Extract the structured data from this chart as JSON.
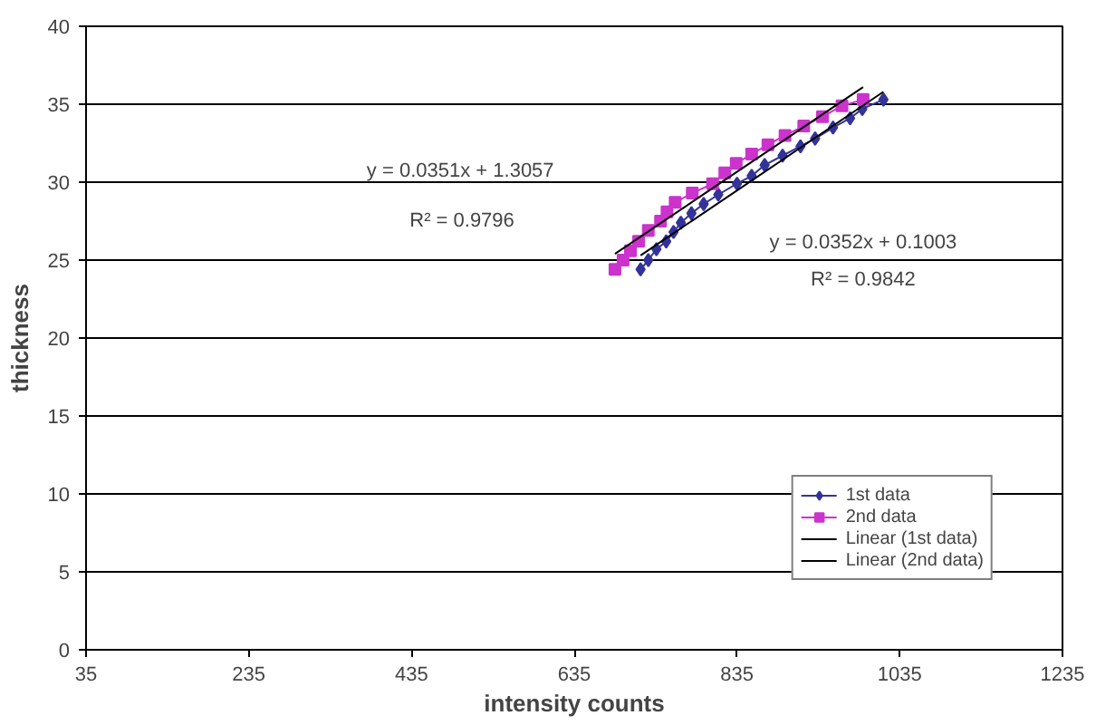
{
  "chart_data": {
    "type": "line",
    "xlabel": "intensity counts",
    "ylabel": "thickness",
    "xlim": [
      35,
      1235
    ],
    "xticks": [
      35,
      235,
      435,
      635,
      835,
      1035,
      1235
    ],
    "ylim": [
      0,
      40
    ],
    "yticks": [
      0,
      5,
      10,
      15,
      20,
      25,
      30,
      35,
      40
    ],
    "grid": "y",
    "legend": "bottom right",
    "series": [
      {
        "name": "1st data",
        "color": "#333399",
        "marker": "diamond",
        "x": [
          716.5,
          726,
          736,
          748,
          757,
          766,
          779,
          794,
          812,
          835,
          853,
          869,
          891,
          913,
          931,
          953,
          974,
          989,
          1015
        ],
        "values": [
          24.4,
          25.0,
          25.7,
          26.2,
          26.8,
          27.4,
          28.0,
          28.6,
          29.2,
          29.9,
          30.4,
          31.1,
          31.7,
          32.3,
          32.8,
          33.5,
          34.1,
          34.7,
          35.3
        ]
      },
      {
        "name": "2nd data",
        "color": "#cc33cc",
        "marker": "square",
        "x": [
          685,
          695,
          704,
          714,
          726,
          741,
          749,
          759,
          780,
          805,
          820,
          834,
          853,
          873,
          894,
          917,
          940,
          964,
          990
        ],
        "values": [
          24.4,
          25.0,
          25.6,
          26.2,
          26.9,
          27.5,
          28.1,
          28.7,
          29.3,
          29.9,
          30.6,
          31.2,
          31.8,
          32.4,
          33.0,
          33.6,
          34.2,
          34.9,
          35.3
        ]
      },
      {
        "name": "Linear (1st data)",
        "color": "#000000",
        "marker": "none",
        "x": [
          716.5,
          1015
        ],
        "values": [
          25.3,
          35.8
        ]
      },
      {
        "name": "Linear (2nd data)",
        "color": "#000000",
        "marker": "none",
        "x": [
          685,
          990
        ],
        "values": [
          25.4,
          36.1
        ]
      }
    ],
    "annotations": [
      "y = 0.0351x + 1.3057",
      "R² = 0.9796",
      "y = 0.0352x + 0.1003",
      "R² = 0.9842"
    ]
  }
}
